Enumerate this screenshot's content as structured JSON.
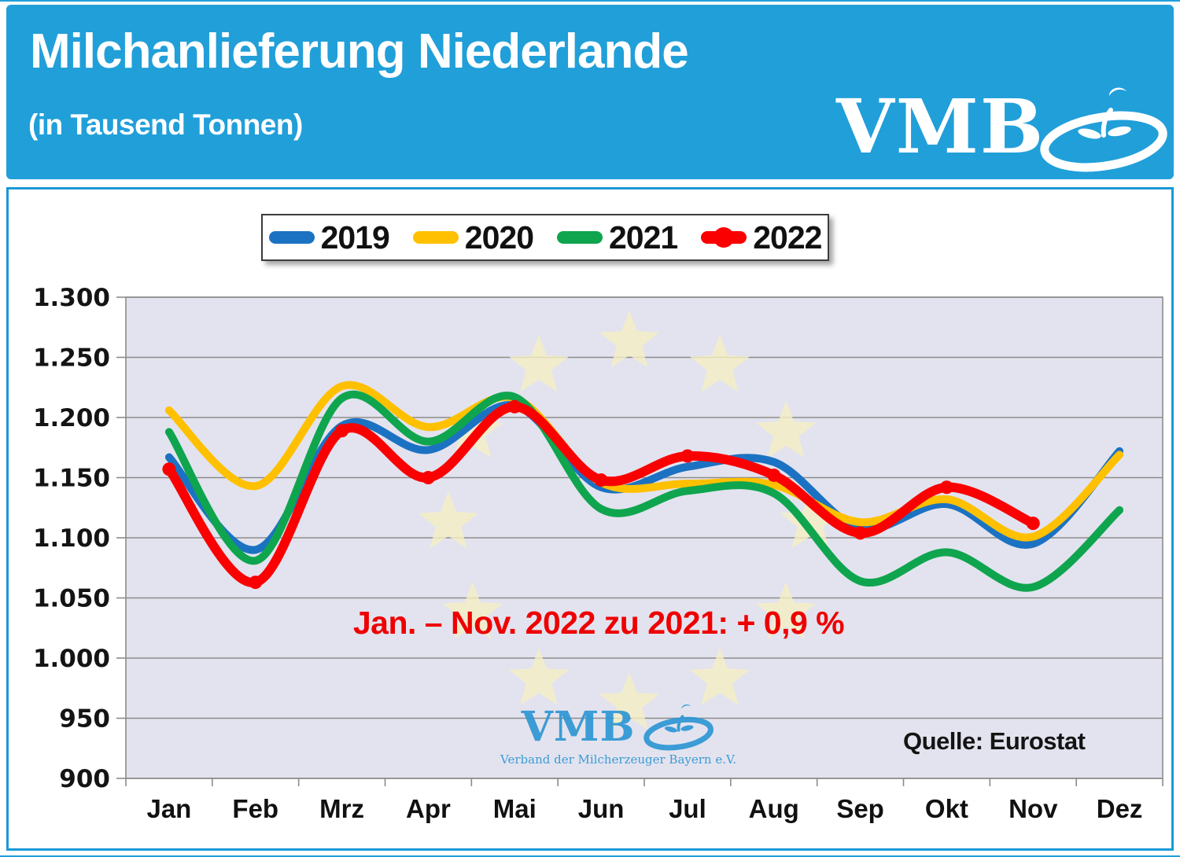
{
  "header": {
    "title": "Milchanlieferung Niederlande",
    "subtitle": "(in Tausend Tonnen)",
    "logo_text": "VMB"
  },
  "watermark": {
    "text": "VMB",
    "subtext": "Verband der Milcherzeuger Bayern e.V."
  },
  "colors": {
    "header_blue": "#219FD9",
    "panel_border_blue": "#1899D6",
    "plot_bg": "#E3E3EF",
    "gridline_grey": "#8C8C8C",
    "star_yellow": "#F4EFC3",
    "annotation_red": "#EE0000",
    "watermark_blue": "#2E96D3",
    "logo_white": "#FFFFFF",
    "axis_text": "#141414"
  },
  "chart_data": {
    "type": "line",
    "title": "Milchanlieferung Niederlande (in Tausend Tonnen)",
    "categories": [
      "Jan",
      "Feb",
      "Mrz",
      "Apr",
      "Mai",
      "Jun",
      "Jul",
      "Aug",
      "Sep",
      "Okt",
      "Nov",
      "Dez"
    ],
    "series": [
      {
        "name": "2019",
        "color": "#1C72C2",
        "marker": false,
        "values": [
          1167,
          1090,
          1193,
          1173,
          1210,
          1142,
          1159,
          1163,
          1108,
          1128,
          1095,
          1172
        ]
      },
      {
        "name": "2020",
        "color": "#FFC000",
        "marker": false,
        "values": [
          1206,
          1143,
          1226,
          1192,
          1216,
          1146,
          1145,
          1144,
          1113,
          1132,
          1101,
          1169
        ]
      },
      {
        "name": "2021",
        "color": "#0FA54E",
        "marker": false,
        "values": [
          1188,
          1081,
          1216,
          1180,
          1217,
          1124,
          1139,
          1137,
          1064,
          1088,
          1059,
          1123
        ]
      },
      {
        "name": "2022",
        "color": "#FA0000",
        "marker": true,
        "values": [
          1157,
          1063,
          1189,
          1150,
          1209,
          1148,
          1168,
          1152,
          1104,
          1142,
          1112,
          null
        ]
      }
    ],
    "ylim": [
      900,
      1300
    ],
    "ytick_step": 50,
    "ytick_labels": [
      "1.300",
      "1.250",
      "1.200",
      "1.150",
      "1.100",
      "1.050",
      "1.000",
      "950",
      "900"
    ],
    "grid": true,
    "legend_position": "top",
    "annotation": "Jan. – Nov. 2022 zu 2021: + 0,9 %",
    "source": "Quelle: Eurostat"
  }
}
